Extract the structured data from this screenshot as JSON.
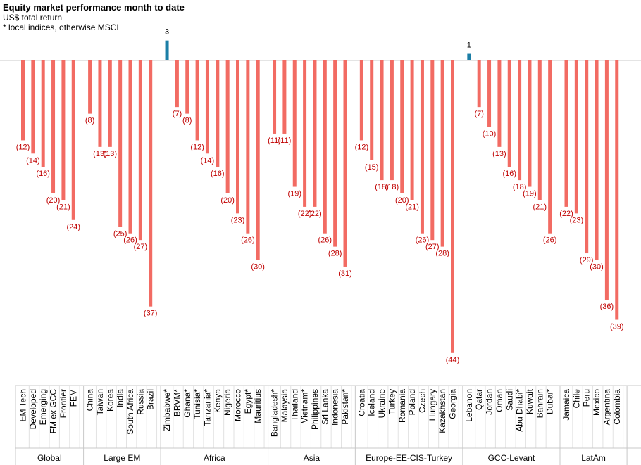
{
  "chart_data": {
    "type": "bar",
    "title": "Equity market performance month to date",
    "subtitle": "US$ total return",
    "note": "* local indices, otherwise  MSCI",
    "colors": {
      "negative": "#f26b63",
      "positive": "#1b7ea6",
      "label": "#c00000",
      "axis": "#c8c8c8",
      "text": "#000000"
    },
    "groups": [
      {
        "name": "Global",
        "items": [
          {
            "label": "EM Tech",
            "value": -12
          },
          {
            "label": "Developed",
            "value": -14
          },
          {
            "label": "Emerging",
            "value": -16
          },
          {
            "label": "FM ex GCC",
            "value": -20
          },
          {
            "label": "Frontier",
            "value": -21
          },
          {
            "label": "FEM",
            "value": -24
          }
        ]
      },
      {
        "name": "Large EM",
        "items": [
          {
            "label": "China",
            "value": -8
          },
          {
            "label": "Taiwan",
            "value": -13
          },
          {
            "label": "Korea",
            "value": -13
          },
          {
            "label": "India",
            "value": -25
          },
          {
            "label": "South Africa",
            "value": -26
          },
          {
            "label": "Russia",
            "value": -27
          },
          {
            "label": "Brazil",
            "value": -37
          }
        ]
      },
      {
        "name": "Africa",
        "items": [
          {
            "label": "Zimbabwe*",
            "value": 3
          },
          {
            "label": "BRVM*",
            "value": -7
          },
          {
            "label": "Ghana*",
            "value": -8
          },
          {
            "label": "Tunisia*",
            "value": -12
          },
          {
            "label": "Tanzania*",
            "value": -14
          },
          {
            "label": "Kenya",
            "value": -16
          },
          {
            "label": "Nigeria",
            "value": -20
          },
          {
            "label": "Morocco",
            "value": -23
          },
          {
            "label": "Egypt*",
            "value": -26
          },
          {
            "label": "Mauritius",
            "value": -30
          }
        ]
      },
      {
        "name": "Asia",
        "items": [
          {
            "label": "Bangladesh*",
            "value": -11
          },
          {
            "label": "Malaysia",
            "value": -11
          },
          {
            "label": "Thailand",
            "value": -19
          },
          {
            "label": "Vietnam*",
            "value": -22
          },
          {
            "label": "Philippines",
            "value": -22
          },
          {
            "label": "Sri Lanka",
            "value": -26
          },
          {
            "label": "Indonesia",
            "value": -28
          },
          {
            "label": "Pakistan*",
            "value": -31
          }
        ]
      },
      {
        "name": "Europe-EE-CIS-Turkey",
        "items": [
          {
            "label": "Croatia",
            "value": -12
          },
          {
            "label": "Iceland",
            "value": -15
          },
          {
            "label": "Ukraine",
            "value": -18
          },
          {
            "label": "Turkey",
            "value": -18
          },
          {
            "label": "Romania",
            "value": -20
          },
          {
            "label": "Poland",
            "value": -21
          },
          {
            "label": "Czech",
            "value": -26
          },
          {
            "label": "Hungary",
            "value": -27
          },
          {
            "label": "Kazakhstan",
            "value": -28
          },
          {
            "label": "Georgia",
            "value": -44
          }
        ]
      },
      {
        "name": "GCC-Levant",
        "items": [
          {
            "label": "Lebanon",
            "value": 1
          },
          {
            "label": "Qatar",
            "value": -7
          },
          {
            "label": "Jordan",
            "value": -10
          },
          {
            "label": "Oman",
            "value": -13
          },
          {
            "label": "Saudi",
            "value": -16
          },
          {
            "label": "Abu Dhabi*",
            "value": -18
          },
          {
            "label": "Kuwait",
            "value": -19
          },
          {
            "label": "Bahrain",
            "value": -21
          },
          {
            "label": "Dubai*",
            "value": -26
          }
        ]
      },
      {
        "name": "LatAm",
        "items": [
          {
            "label": "Jamaica",
            "value": -22
          },
          {
            "label": "Chile",
            "value": -23
          },
          {
            "label": "Peru",
            "value": -29
          },
          {
            "label": "Mexico",
            "value": -30
          },
          {
            "label": "Argentina",
            "value": -36
          },
          {
            "label": "Colombia",
            "value": -39
          }
        ]
      }
    ]
  }
}
